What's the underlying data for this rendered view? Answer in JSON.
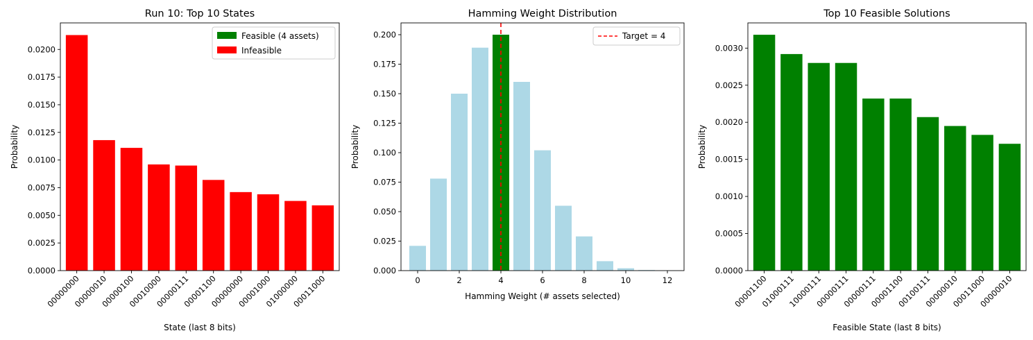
{
  "chart_data": [
    {
      "type": "bar",
      "title": "Run 10: Top 10 States",
      "xlabel": "State (last 8 bits)",
      "ylabel": "Probability",
      "ylim": [
        0,
        0.0224
      ],
      "yticks": [
        "0.0000",
        "0.0025",
        "0.0050",
        "0.0075",
        "0.0100",
        "0.0125",
        "0.0150",
        "0.0175",
        "0.0200"
      ],
      "categories": [
        "00000000",
        "00000010",
        "00000100",
        "00010000",
        "00000111",
        "00001100",
        "00000000",
        "00001000",
        "01000000",
        "00011000"
      ],
      "values": [
        0.0213,
        0.0118,
        0.0111,
        0.0096,
        0.0095,
        0.0082,
        0.0071,
        0.0069,
        0.0063,
        0.0059
      ],
      "bar_color": "#ff0000",
      "legend_position": "top-right",
      "legend": [
        {
          "label": "Feasible (4 assets)",
          "color": "#008000"
        },
        {
          "label": "Infeasible",
          "color": "#ff0000"
        }
      ]
    },
    {
      "type": "bar",
      "title": "Hamming Weight Distribution",
      "xlabel": "Hamming Weight (# assets selected)",
      "ylabel": "Probability",
      "xlim": [
        -0.8,
        12.8
      ],
      "ylim": [
        0,
        0.21
      ],
      "xticks": [
        "0",
        "2",
        "4",
        "6",
        "8",
        "10",
        "12"
      ],
      "yticks": [
        "0.000",
        "0.025",
        "0.050",
        "0.075",
        "0.100",
        "0.125",
        "0.150",
        "0.175",
        "0.200"
      ],
      "x": [
        0,
        1,
        2,
        3,
        4,
        5,
        6,
        7,
        8,
        9,
        10,
        11,
        12
      ],
      "values": [
        0.021,
        0.078,
        0.15,
        0.189,
        0.2,
        0.16,
        0.102,
        0.055,
        0.029,
        0.008,
        0.002,
        0.0005,
        0.0001
      ],
      "bar_color": "#add8e6",
      "highlight": {
        "x": 4,
        "color": "#008000"
      },
      "target_line": {
        "x": 4,
        "color": "#ff0000",
        "style": "dashed"
      },
      "legend_position": "top-right",
      "legend": [
        {
          "label": "Target = 4",
          "color": "#ff0000"
        }
      ]
    },
    {
      "type": "bar",
      "title": "Top 10 Feasible Solutions",
      "xlabel": "Feasible State (last 8 bits)",
      "ylabel": "Probability",
      "ylim": [
        0,
        0.00334
      ],
      "yticks": [
        "0.0000",
        "0.0005",
        "0.0010",
        "0.0015",
        "0.0020",
        "0.0025",
        "0.0030"
      ],
      "categories": [
        "00001100",
        "01000111",
        "10000111",
        "00000111",
        "00000111",
        "00001100",
        "00100111",
        "00000010",
        "00011000",
        "00000010"
      ],
      "values": [
        0.00318,
        0.00292,
        0.0028,
        0.0028,
        0.00232,
        0.00232,
        0.00207,
        0.00195,
        0.00183,
        0.00171
      ],
      "bar_color": "#008000"
    }
  ]
}
